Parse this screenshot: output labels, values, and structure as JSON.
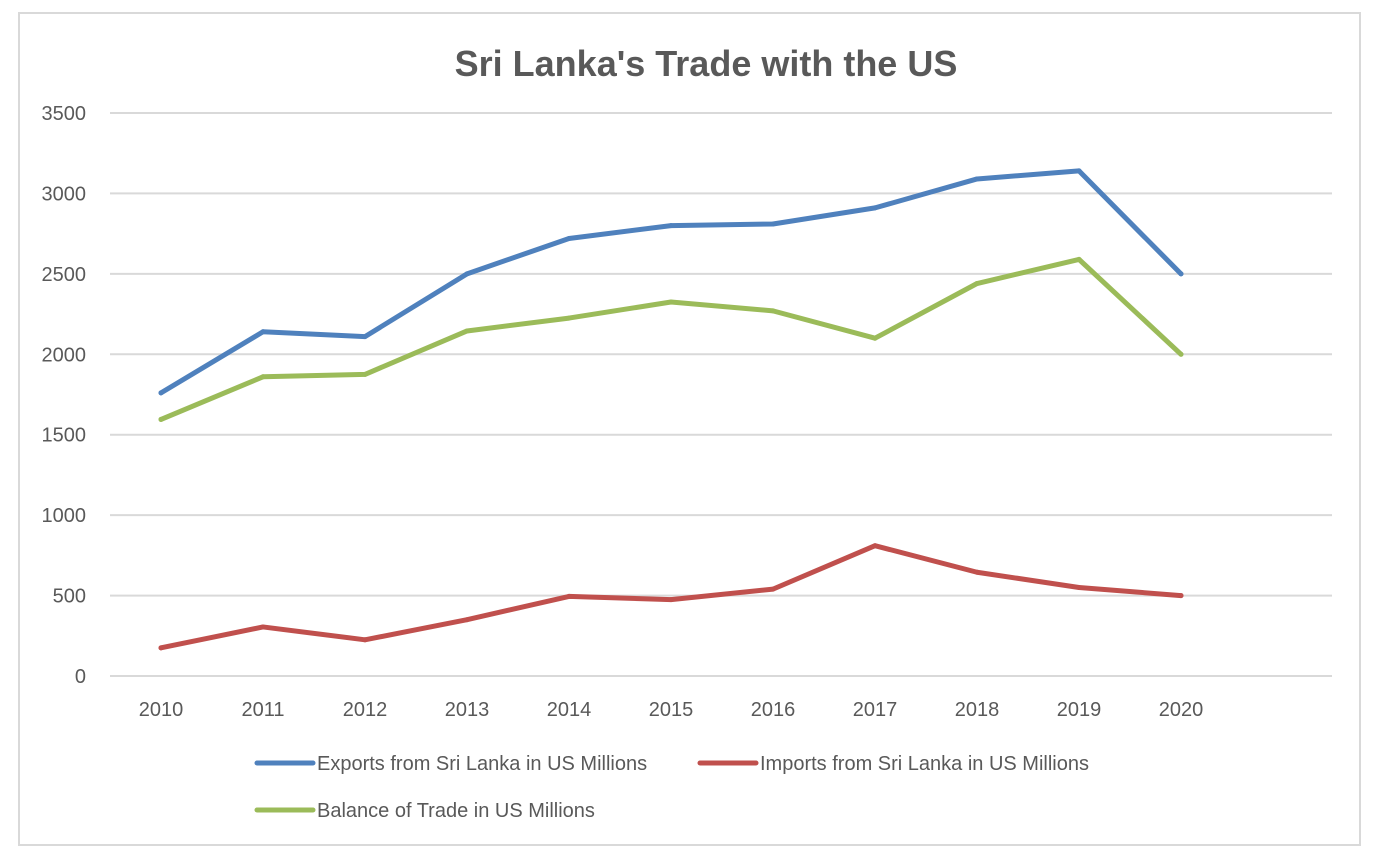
{
  "chart_data": {
    "type": "line",
    "title": "Sri Lanka's Trade with the US",
    "xlabel": "",
    "ylabel": "",
    "categories": [
      "2010",
      "2011",
      "2012",
      "2013",
      "2014",
      "2015",
      "2016",
      "2017",
      "2018",
      "2019",
      "2020"
    ],
    "ylim": [
      0,
      3500
    ],
    "yticks": [
      "0",
      "500",
      "1000",
      "1500",
      "2000",
      "2500",
      "3000",
      "3500"
    ],
    "grid": "horizontal",
    "legend_position": "bottom",
    "series": [
      {
        "name": "Exports from Sri Lanka in US Millions",
        "color": "#4f81bd",
        "values": [
          1760,
          2140,
          2110,
          2500,
          2720,
          2800,
          2810,
          2910,
          3090,
          3140,
          2500
        ]
      },
      {
        "name": "Imports from Sri Lanka in US Millions",
        "color": "#c0504d",
        "values": [
          175,
          305,
          225,
          350,
          495,
          475,
          540,
          810,
          645,
          550,
          500
        ]
      },
      {
        "name": "Balance of Trade in US Millions",
        "color": "#9bbb59",
        "values": [
          1595,
          1860,
          1875,
          2145,
          2225,
          2325,
          2270,
          2100,
          2440,
          2590,
          2000
        ]
      }
    ]
  }
}
